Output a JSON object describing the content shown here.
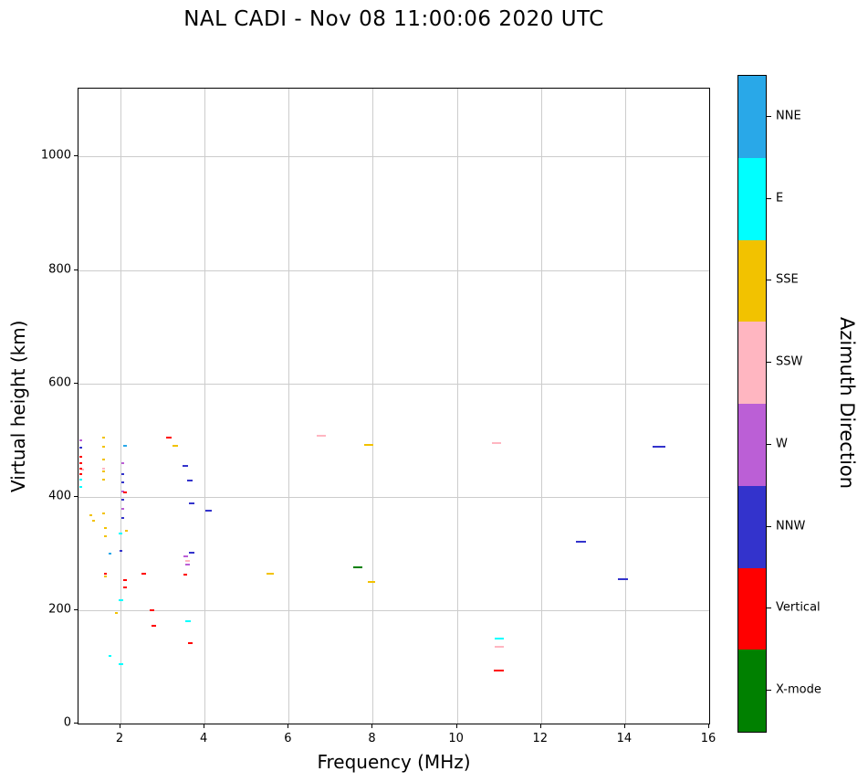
{
  "title": "NAL CADI - Nov 08 11:00:06 2020 UTC",
  "chart_data": {
    "type": "scatter",
    "title": "NAL CADI - Nov 08 11:00:06 2020 UTC",
    "xlabel": "Frequency (MHz)",
    "ylabel": "Virtual height (km)",
    "colorbar_label": "Azimuth Direction",
    "xlim": [
      1,
      16
    ],
    "ylim": [
      0,
      1120
    ],
    "x_ticks": [
      2,
      4,
      6,
      8,
      10,
      12,
      14,
      16
    ],
    "y_ticks": [
      0,
      200,
      400,
      600,
      800,
      1000
    ],
    "grid": true,
    "grid_color": "#cccccc",
    "marker": "horizontal-dash",
    "legend": {
      "title": "Azimuth Direction",
      "position": "right-colorbar",
      "entries": [
        {
          "label": "NNE",
          "color": "#29a8e8"
        },
        {
          "label": "E",
          "color": "#00ffff"
        },
        {
          "label": "SSE",
          "color": "#f2c200"
        },
        {
          "label": "SSW",
          "color": "#ffb6c1"
        },
        {
          "label": "W",
          "color": "#bb5fd6"
        },
        {
          "label": "NNW",
          "color": "#3333cc"
        },
        {
          "label": "Vertical",
          "color": "#ff0000"
        },
        {
          "label": "X-mode",
          "color": "#008000"
        }
      ]
    },
    "series": [
      {
        "name": "NNE",
        "points": [
          [
            1.75,
            300,
            3
          ],
          [
            2.1,
            490,
            4
          ]
        ]
      },
      {
        "name": "E",
        "points": [
          [
            1.05,
            430,
            3
          ],
          [
            1.05,
            418,
            3
          ],
          [
            1.75,
            120,
            3
          ],
          [
            2.0,
            105,
            5
          ],
          [
            2.0,
            218,
            5
          ],
          [
            2.0,
            335,
            4
          ],
          [
            3.6,
            180,
            6
          ],
          [
            11.0,
            150,
            10
          ]
        ]
      },
      {
        "name": "SSE",
        "points": [
          [
            1.3,
            368,
            3
          ],
          [
            1.35,
            358,
            3
          ],
          [
            1.6,
            505,
            3
          ],
          [
            1.6,
            488,
            3
          ],
          [
            1.6,
            465,
            3
          ],
          [
            1.6,
            445,
            3
          ],
          [
            1.6,
            430,
            3
          ],
          [
            1.6,
            370,
            3
          ],
          [
            1.65,
            345,
            3
          ],
          [
            1.65,
            330,
            3
          ],
          [
            1.65,
            260,
            3
          ],
          [
            1.9,
            195,
            3
          ],
          [
            2.15,
            340,
            3
          ],
          [
            3.3,
            490,
            6
          ],
          [
            5.55,
            265,
            8
          ],
          [
            7.9,
            492,
            10
          ],
          [
            7.97,
            250,
            8
          ]
        ]
      },
      {
        "name": "SSW",
        "points": [
          [
            1.1,
            448,
            3
          ],
          [
            1.6,
            450,
            3
          ],
          [
            3.6,
            287,
            5
          ],
          [
            6.78,
            507,
            10
          ],
          [
            10.95,
            495,
            10
          ],
          [
            11.0,
            135,
            10
          ]
        ]
      },
      {
        "name": "W",
        "points": [
          [
            1.05,
            500,
            3
          ],
          [
            2.05,
            460,
            3
          ],
          [
            2.05,
            410,
            3
          ],
          [
            2.05,
            378,
            3
          ],
          [
            3.55,
            295,
            5
          ],
          [
            3.6,
            280,
            5
          ]
        ]
      },
      {
        "name": "NNW",
        "points": [
          [
            1.05,
            487,
            3
          ],
          [
            2.05,
            440,
            3
          ],
          [
            2.05,
            425,
            3
          ],
          [
            2.05,
            395,
            3
          ],
          [
            2.05,
            362,
            3
          ],
          [
            2.0,
            305,
            3
          ],
          [
            3.55,
            455,
            6
          ],
          [
            3.65,
            428,
            6
          ],
          [
            3.7,
            388,
            6
          ],
          [
            3.7,
            302,
            6
          ],
          [
            4.1,
            375,
            7
          ],
          [
            12.95,
            320,
            11
          ],
          [
            13.95,
            255,
            11
          ],
          [
            14.8,
            488,
            14
          ]
        ]
      },
      {
        "name": "Vertical",
        "points": [
          [
            1.05,
            470,
            3
          ],
          [
            1.05,
            460,
            3
          ],
          [
            1.05,
            450,
            3
          ],
          [
            1.05,
            440,
            3
          ],
          [
            1.65,
            265,
            3
          ],
          [
            2.1,
            408,
            4
          ],
          [
            2.1,
            253,
            4
          ],
          [
            2.1,
            240,
            4
          ],
          [
            2.55,
            265,
            5
          ],
          [
            2.75,
            200,
            5
          ],
          [
            2.8,
            172,
            5
          ],
          [
            3.15,
            505,
            6
          ],
          [
            3.55,
            262,
            4
          ],
          [
            3.65,
            142,
            5
          ],
          [
            11.0,
            93,
            11
          ]
        ]
      },
      {
        "name": "X-mode",
        "points": [
          [
            7.65,
            275,
            10
          ]
        ]
      }
    ]
  }
}
